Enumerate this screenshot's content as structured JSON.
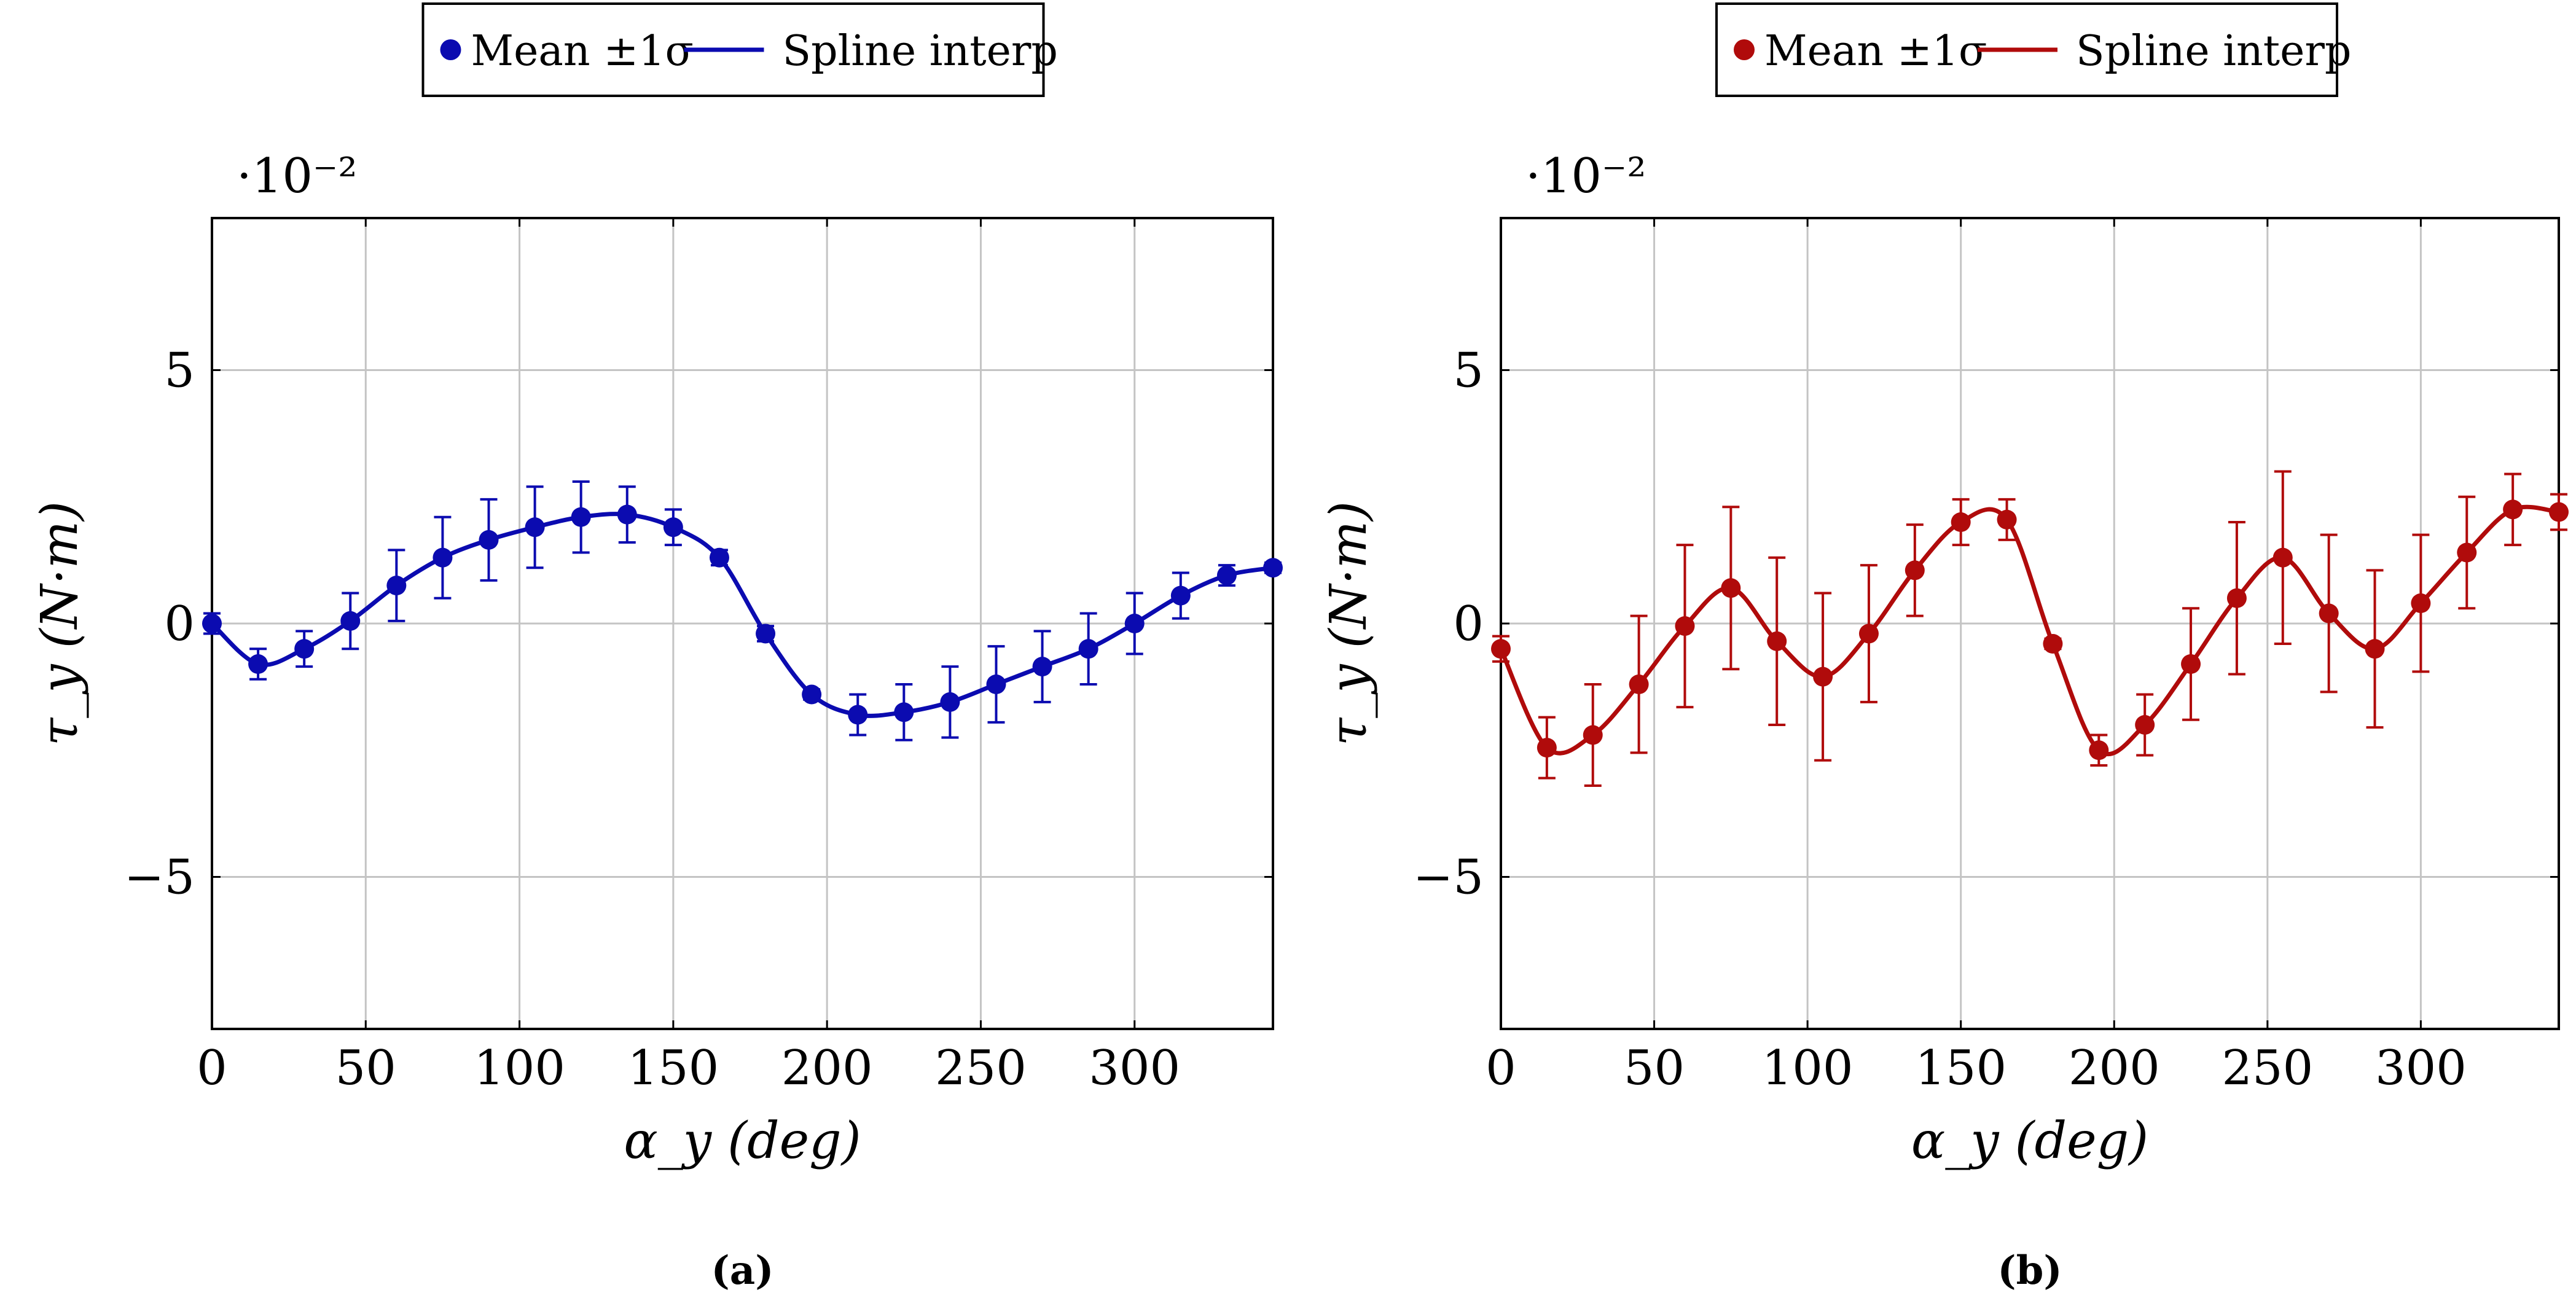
{
  "chart_data": [
    {
      "type": "line",
      "panel_label": "(a)",
      "color": "#0b0bb0",
      "title": "",
      "xlabel": "α_y (deg)",
      "ylabel": "τ_y (N·m)",
      "y_scale_label": "·10⁻²",
      "xlim": [
        0,
        345
      ],
      "ylim": [
        -8,
        8
      ],
      "x_ticks": [
        0,
        50,
        100,
        150,
        200,
        250,
        300
      ],
      "x_tick_labels": [
        "0",
        "50",
        "100",
        "150",
        "200",
        "250",
        "300"
      ],
      "y_ticks": [
        5,
        0,
        -5
      ],
      "y_tick_labels": [
        "5",
        "0",
        "−5"
      ],
      "grid": true,
      "legend": {
        "placement": "top-center",
        "entries": [
          "Mean ±1σ",
          "Spline interp"
        ]
      },
      "series": [
        {
          "name": "Mean ±1σ",
          "x": [
            0,
            15,
            30,
            45,
            60,
            75,
            90,
            105,
            120,
            135,
            150,
            165,
            180,
            195,
            210,
            225,
            240,
            255,
            270,
            285,
            300,
            315,
            330,
            345
          ],
          "y": [
            0.0,
            -0.8,
            -0.5,
            0.05,
            0.75,
            1.3,
            1.65,
            1.9,
            2.1,
            2.15,
            1.9,
            1.3,
            -0.2,
            -1.4,
            -1.8,
            -1.75,
            -1.55,
            -1.2,
            -0.85,
            -0.5,
            0.0,
            0.55,
            0.95,
            1.1
          ],
          "err": [
            0.2,
            0.3,
            0.35,
            0.55,
            0.7,
            0.8,
            0.8,
            0.8,
            0.7,
            0.55,
            0.35,
            0.15,
            0.15,
            0.1,
            0.4,
            0.55,
            0.7,
            0.75,
            0.7,
            0.7,
            0.6,
            0.45,
            0.2,
            0.1
          ]
        }
      ]
    },
    {
      "type": "line",
      "panel_label": "(b)",
      "color": "#b00b0b",
      "title": "",
      "xlabel": "α_y (deg)",
      "ylabel": "τ_y (N·m)",
      "y_scale_label": "·10⁻²",
      "xlim": [
        0,
        345
      ],
      "ylim": [
        -8,
        8
      ],
      "x_ticks": [
        0,
        50,
        100,
        150,
        200,
        250,
        300
      ],
      "x_tick_labels": [
        "0",
        "50",
        "100",
        "150",
        "200",
        "250",
        "300"
      ],
      "y_ticks": [
        5,
        0,
        -5
      ],
      "y_tick_labels": [
        "5",
        "0",
        "−5"
      ],
      "grid": true,
      "legend": {
        "placement": "top-center",
        "entries": [
          "Mean ±1σ",
          "Spline interp"
        ]
      },
      "series": [
        {
          "name": "Mean ±1σ",
          "x": [
            0,
            15,
            30,
            45,
            60,
            75,
            90,
            105,
            120,
            135,
            150,
            165,
            180,
            195,
            210,
            225,
            240,
            255,
            270,
            285,
            300,
            315,
            330,
            345
          ],
          "y": [
            -0.5,
            -2.45,
            -2.2,
            -1.2,
            -0.05,
            0.7,
            -0.35,
            -1.05,
            -0.2,
            1.05,
            2.0,
            2.05,
            -0.4,
            -2.5,
            -2.0,
            -0.8,
            0.5,
            1.3,
            0.2,
            -0.5,
            0.4,
            1.4,
            2.25,
            2.2
          ],
          "err": [
            0.25,
            0.6,
            1.0,
            1.35,
            1.6,
            1.6,
            1.65,
            1.65,
            1.35,
            0.9,
            0.45,
            0.4,
            0.1,
            0.3,
            0.6,
            1.1,
            1.5,
            1.7,
            1.55,
            1.55,
            1.35,
            1.1,
            0.7,
            0.35
          ]
        }
      ]
    }
  ]
}
